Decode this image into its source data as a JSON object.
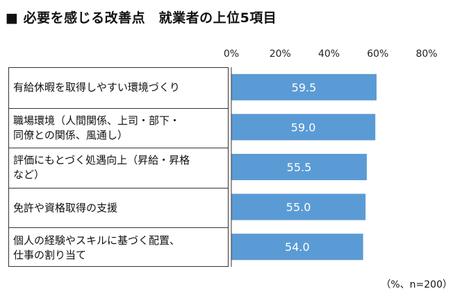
{
  "title": "■ 必要を感じる改善点　就業者の上位5項目",
  "footnote": "（%、n=200）",
  "colors": {
    "bar": "#5b9bd5",
    "bar_label": "#ffffff",
    "axis": "#333333"
  },
  "chart_data": {
    "type": "bar",
    "orientation": "horizontal",
    "title": "■ 必要を感じる改善点　就業者の上位5項目",
    "categories": [
      "有給休暇を取得しやすい環境づくり",
      "職場環境（人間関係、上司・部下・同僚との関係、風通し）",
      "評価にもとづく処遇向上（昇給・昇格など）",
      "免許や資格取得の支援",
      "個人の経験やスキルに基づく配置、仕事の割り当て"
    ],
    "category_lines": [
      [
        "有給休暇を取得しやすい環境づくり"
      ],
      [
        "職場環境（人間関係、上司・部下・",
        "同僚との関係、風通し）"
      ],
      [
        "評価にもとづく処遇向上（昇給・昇格",
        "など）"
      ],
      [
        "免許や資格取得の支援"
      ],
      [
        "個人の経験やスキルに基づく配置、",
        "仕事の割り当て"
      ]
    ],
    "values": [
      59.5,
      59.0,
      55.5,
      55.0,
      54.0
    ],
    "value_labels": [
      "59.5",
      "59.0",
      "55.5",
      "55.0",
      "54.0"
    ],
    "xlim": [
      0,
      80
    ],
    "xticks": [
      0,
      20,
      40,
      60,
      80
    ],
    "xtick_labels": [
      "0%",
      "20%",
      "40%",
      "60%",
      "80%"
    ],
    "axis_position": "top",
    "grid": false,
    "legend": "none"
  }
}
